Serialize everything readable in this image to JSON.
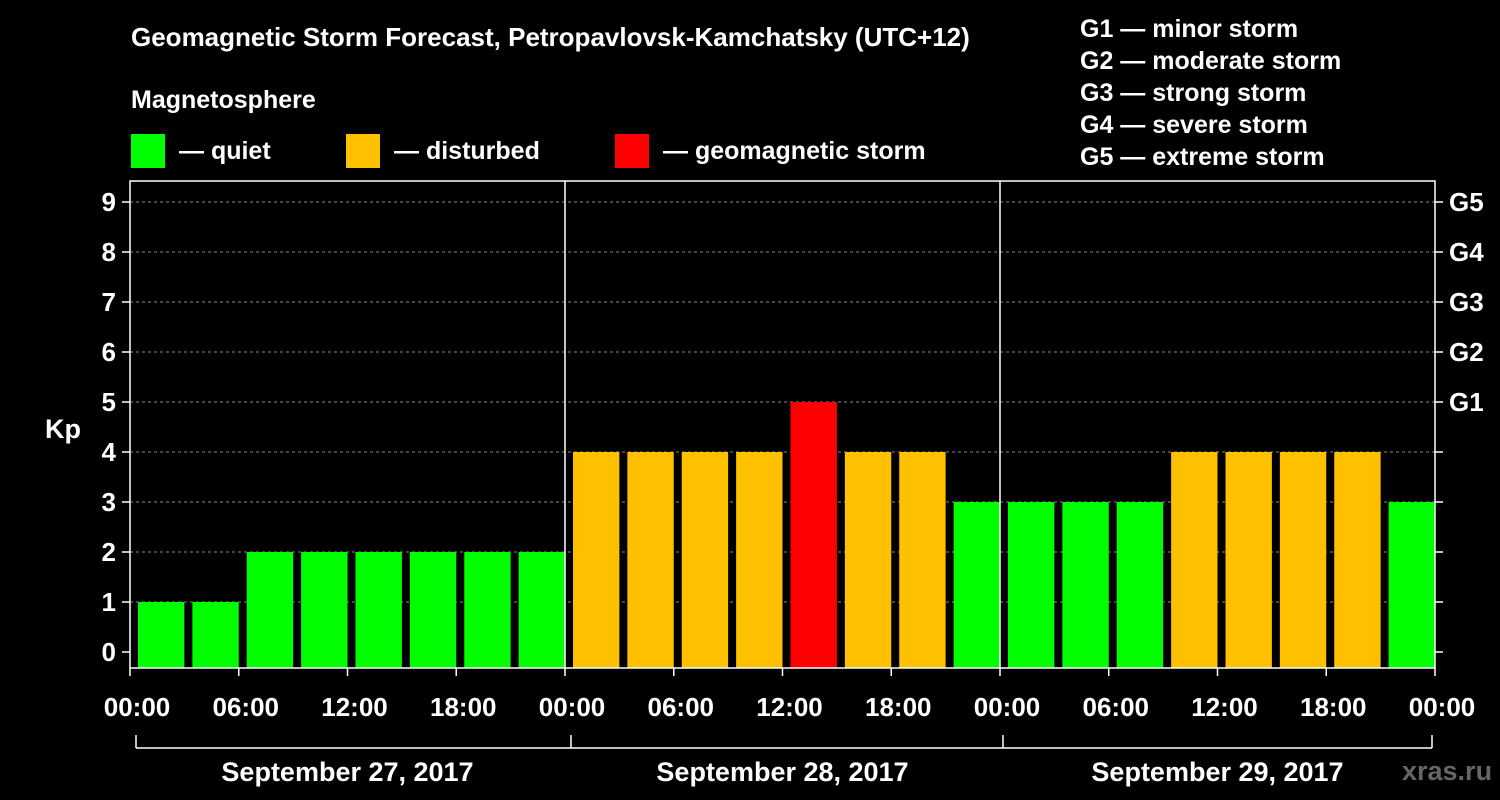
{
  "chart_data": {
    "type": "bar",
    "title": "Geomagnetic Storm Forecast, Petropavlovsk-Kamchatsky (UTC+12)",
    "subtitle": "Magnetosphere",
    "ylabel": "Kp",
    "ylim": [
      0,
      9
    ],
    "yticks": [
      "0",
      "1",
      "2",
      "3",
      "4",
      "5",
      "6",
      "7",
      "8",
      "9"
    ],
    "right_ticks": [
      {
        "label": "G1",
        "kp": 5
      },
      {
        "label": "G2",
        "kp": 6
      },
      {
        "label": "G3",
        "kp": 7
      },
      {
        "label": "G4",
        "kp": 8
      },
      {
        "label": "G5",
        "kp": 9
      }
    ],
    "x_tick_labels": [
      "00:00",
      "06:00",
      "12:00",
      "18:00",
      "00:00",
      "06:00",
      "12:00",
      "18:00",
      "00:00",
      "06:00",
      "12:00",
      "18:00",
      "00:00"
    ],
    "day_labels": [
      "September 27, 2017",
      "September 28, 2017",
      "September 29, 2017"
    ],
    "bars_per_day": 8,
    "values": [
      1,
      1,
      2,
      2,
      2,
      2,
      2,
      2,
      4,
      4,
      4,
      4,
      5,
      4,
      4,
      3,
      3,
      3,
      3,
      4,
      4,
      4,
      4,
      3
    ],
    "status": [
      "quiet",
      "quiet",
      "quiet",
      "quiet",
      "quiet",
      "quiet",
      "quiet",
      "quiet",
      "disturbed",
      "disturbed",
      "disturbed",
      "disturbed",
      "storm",
      "disturbed",
      "disturbed",
      "quiet",
      "quiet",
      "quiet",
      "quiet",
      "disturbed",
      "disturbed",
      "disturbed",
      "disturbed",
      "quiet"
    ],
    "colors": {
      "quiet": "#00ff00",
      "disturbed": "#ffc000",
      "storm": "#ff0000"
    },
    "gridlines": "dashed"
  },
  "legend": [
    {
      "label": "— quiet",
      "color": "#00ff00"
    },
    {
      "label": "— disturbed",
      "color": "#ffc000"
    },
    {
      "label": "— geomagnetic storm",
      "color": "#ff0000"
    }
  ],
  "storm_levels": [
    "G1 — minor storm",
    "G2 — moderate storm",
    "G3 — strong storm",
    "G4 — severe storm",
    "G5 — extreme storm"
  ],
  "watermark": "xras.ru"
}
